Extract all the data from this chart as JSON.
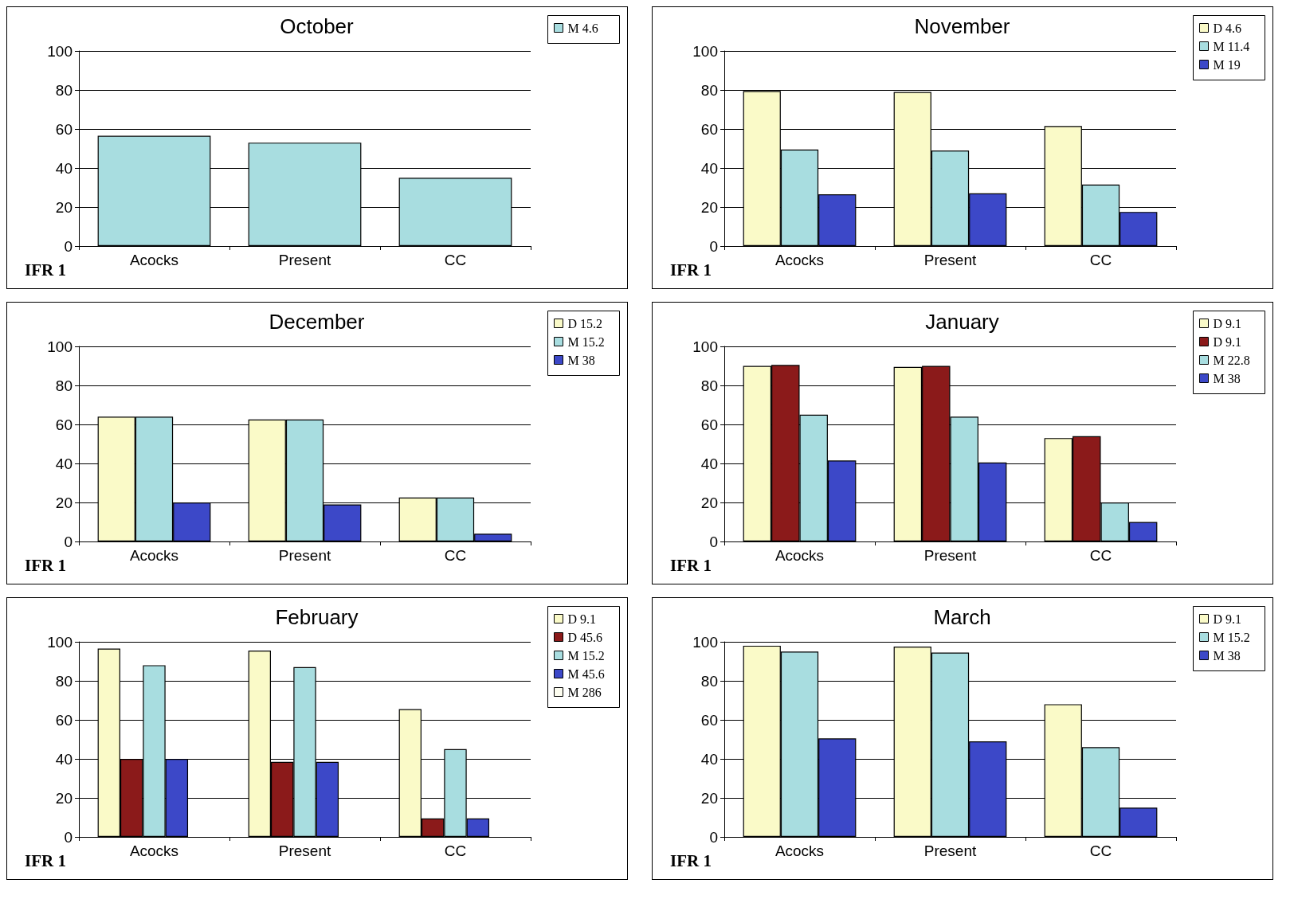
{
  "chart_data": [
    {
      "type": "bar",
      "title": "October",
      "categories": [
        "Acocks",
        "Present",
        "CC"
      ],
      "series": [
        {
          "name": "M 4.6",
          "color": "#a8dde0",
          "values": [
            56.5,
            53,
            35
          ]
        }
      ],
      "ylim": [
        0,
        100
      ],
      "yticks": [
        0,
        20,
        40,
        60,
        80,
        100
      ],
      "grid": "y",
      "legend": "top right",
      "annotations": [
        "IFR 1"
      ]
    },
    {
      "type": "bar",
      "title": "November",
      "categories": [
        "Acocks",
        "Present",
        "CC"
      ],
      "series": [
        {
          "name": "D 4.6",
          "color": "#fafac8",
          "values": [
            79.5,
            79,
            61.5
          ]
        },
        {
          "name": "M 11.4",
          "color": "#a8dde0",
          "values": [
            49.5,
            49,
            31.5
          ]
        },
        {
          "name": "M 19",
          "color": "#3c48c8",
          "values": [
            26.5,
            27,
            17.5
          ]
        }
      ],
      "ylim": [
        0,
        100
      ],
      "yticks": [
        0,
        20,
        40,
        60,
        80,
        100
      ],
      "grid": "y",
      "legend": "top right",
      "annotations": [
        "IFR 1"
      ]
    },
    {
      "type": "bar",
      "title": "December",
      "categories": [
        "Acocks",
        "Present",
        "CC"
      ],
      "series": [
        {
          "name": "D 15.2",
          "color": "#fafac8",
          "values": [
            64,
            62.5,
            22.5
          ]
        },
        {
          "name": "M 15.2",
          "color": "#a8dde0",
          "values": [
            64,
            62.5,
            22.5
          ]
        },
        {
          "name": "M 38",
          "color": "#3c48c8",
          "values": [
            20,
            19,
            4
          ]
        }
      ],
      "ylim": [
        0,
        100
      ],
      "yticks": [
        0,
        20,
        40,
        60,
        80,
        100
      ],
      "grid": "y",
      "legend": "top right",
      "annotations": [
        "IFR 1"
      ]
    },
    {
      "type": "bar",
      "title": "January",
      "categories": [
        "Acocks",
        "Present",
        "CC"
      ],
      "series": [
        {
          "name": "D 9.1",
          "color": "#fafac8",
          "values": [
            90,
            89.5,
            53
          ]
        },
        {
          "name": "D 9.1",
          "color": "#8b1a1a",
          "values": [
            90.5,
            90,
            54
          ]
        },
        {
          "name": "M 22.8",
          "color": "#a8dde0",
          "values": [
            65,
            64,
            20
          ]
        },
        {
          "name": "M 38",
          "color": "#3c48c8",
          "values": [
            41.5,
            40.5,
            10
          ]
        }
      ],
      "ylim": [
        0,
        100
      ],
      "yticks": [
        0,
        20,
        40,
        60,
        80,
        100
      ],
      "grid": "y",
      "legend": "top right",
      "annotations": [
        "IFR 1"
      ]
    },
    {
      "type": "bar",
      "title": "February",
      "categories": [
        "Acocks",
        "Present",
        "CC"
      ],
      "series": [
        {
          "name": "D 9.1",
          "color": "#fafac8",
          "values": [
            96.5,
            95.5,
            65.5
          ]
        },
        {
          "name": "D 45.6",
          "color": "#8b1a1a",
          "values": [
            40,
            38.5,
            9.5
          ]
        },
        {
          "name": "M 15.2",
          "color": "#a8dde0",
          "values": [
            88,
            87,
            45
          ]
        },
        {
          "name": "M 45.6",
          "color": "#3c48c8",
          "values": [
            40,
            38.5,
            9.5
          ]
        },
        {
          "name": "M 286",
          "color": "#fdfdf0",
          "values": [
            null,
            null,
            null
          ]
        }
      ],
      "ylim": [
        0,
        100
      ],
      "yticks": [
        0,
        20,
        40,
        60,
        80,
        100
      ],
      "grid": "y",
      "legend": "top right",
      "annotations": [
        "IFR 1"
      ]
    },
    {
      "type": "bar",
      "title": "March",
      "categories": [
        "Acocks",
        "Present",
        "CC"
      ],
      "series": [
        {
          "name": "D 9.1",
          "color": "#fafac8",
          "values": [
            98,
            97.5,
            68
          ]
        },
        {
          "name": "M 15.2",
          "color": "#a8dde0",
          "values": [
            95,
            94.5,
            46
          ]
        },
        {
          "name": "M 38",
          "color": "#3c48c8",
          "values": [
            50.5,
            49,
            15
          ]
        }
      ],
      "ylim": [
        0,
        100
      ],
      "yticks": [
        0,
        20,
        40,
        60,
        80,
        100
      ],
      "grid": "y",
      "legend": "top right",
      "annotations": [
        "IFR 1"
      ]
    }
  ]
}
